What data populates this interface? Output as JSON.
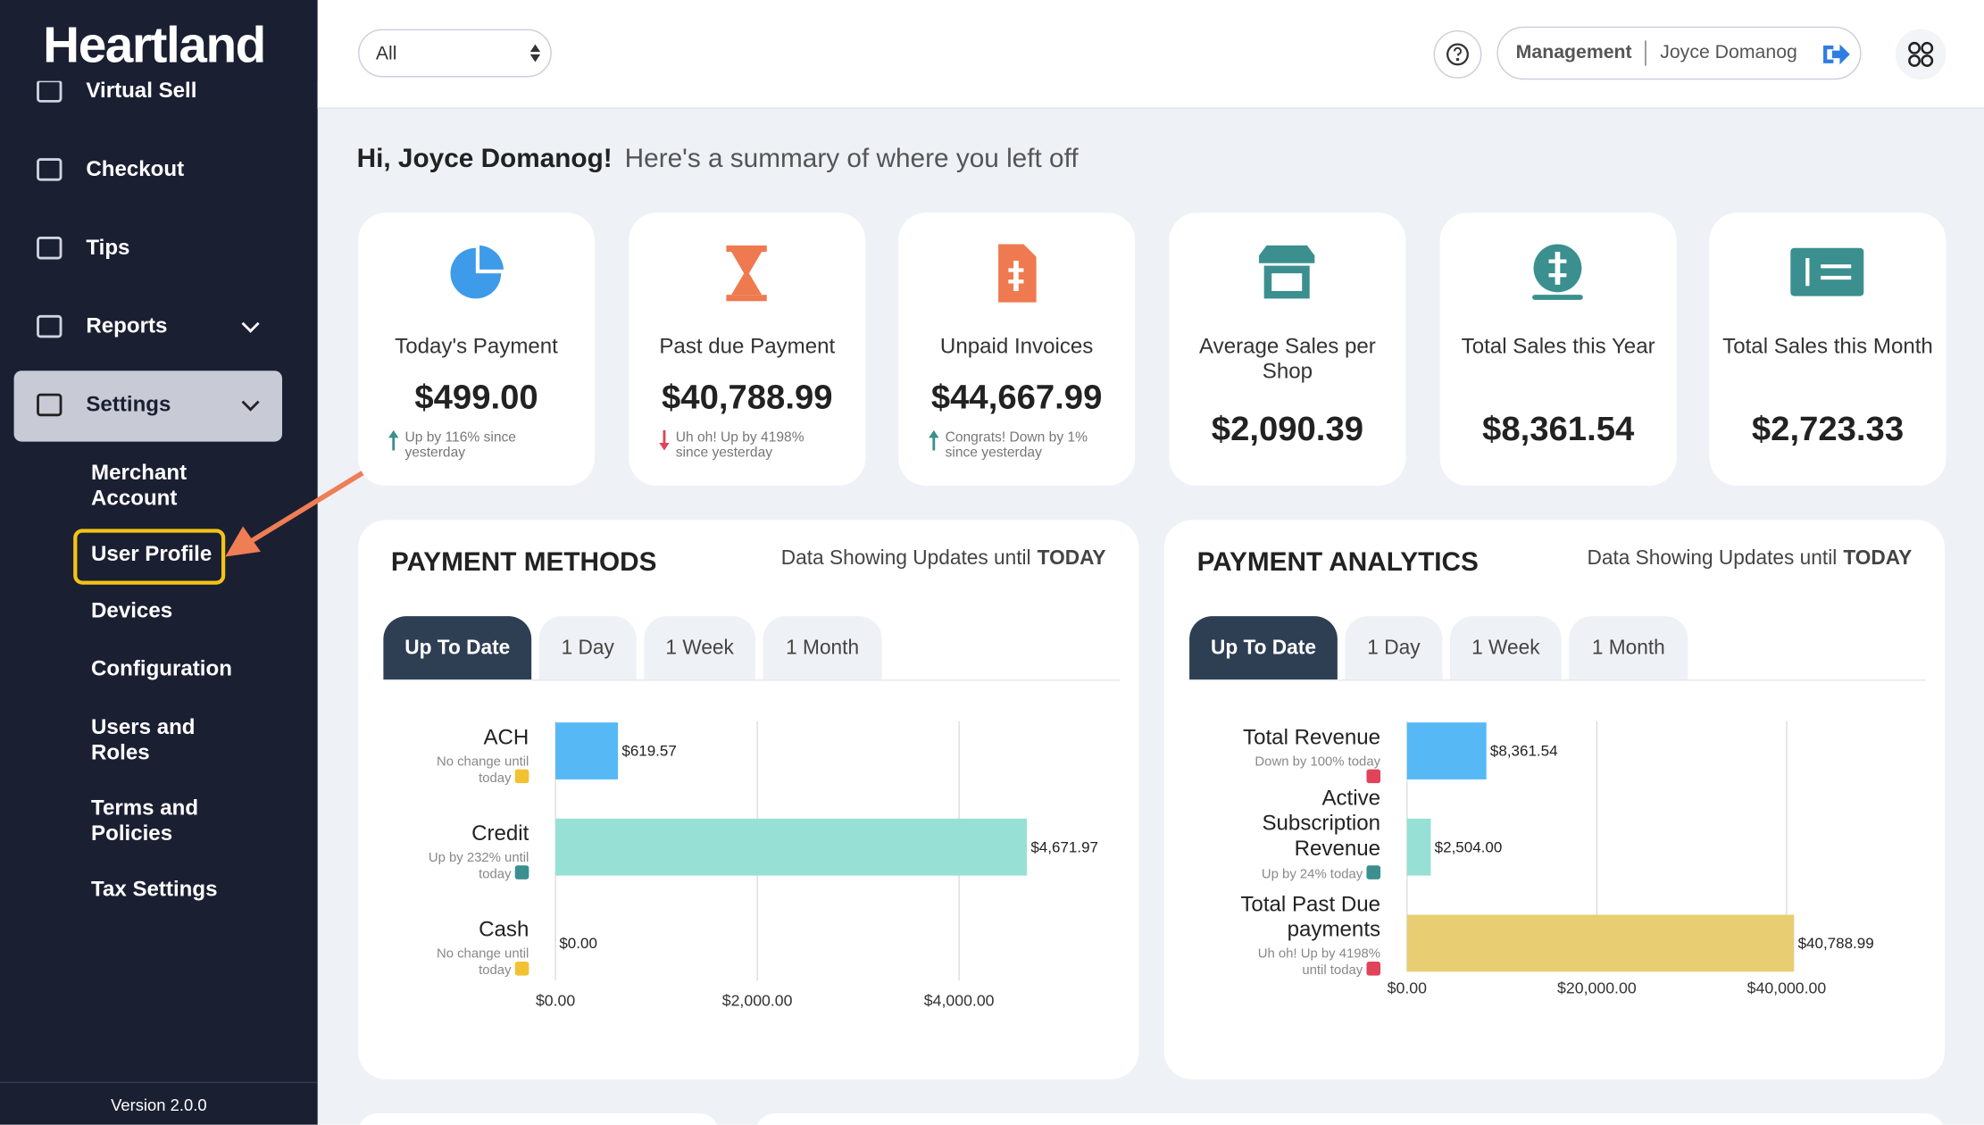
{
  "sidebar": {
    "brand": "Heartland",
    "items": [
      "Virtual Sell",
      "Checkout",
      "Tips",
      "Reports",
      "Settings"
    ],
    "sub_items": [
      "Merchant Account",
      "User Profile",
      "Devices",
      "Configuration",
      "Users and Roles",
      "Terms and Policies",
      "Tax Settings"
    ],
    "version": "Version 2.0.0"
  },
  "header": {
    "filter": "All",
    "role": "Management",
    "user": "Joyce Domanog"
  },
  "greeting": {
    "name": "Hi, Joyce Domanog!",
    "text": "Here's a summary of where you left off"
  },
  "cards": [
    {
      "label": "Today's Payment",
      "value": "$499.00",
      "note": "Up by 116% since yesterday"
    },
    {
      "label": "Past due Payment",
      "value": "$40,788.99",
      "note": "Uh oh! Up by 4198% since yesterday"
    },
    {
      "label": "Unpaid Invoices",
      "value": "$44,667.99",
      "note": "Congrats! Down by 1% since yesterday"
    },
    {
      "label": "Average Sales per Shop",
      "value": "$2,090.39"
    },
    {
      "label": "Total Sales this Year",
      "value": "$8,361.54"
    },
    {
      "label": "Total Sales this Month",
      "value": "$2,723.33"
    }
  ],
  "panels": [
    {
      "title": "PAYMENT METHODS",
      "updates": "Data Showing Updates until",
      "updates_emph": "TODAY",
      "tabs": [
        "Up To Date",
        "1 Day",
        "1 Week",
        "1 Month"
      ],
      "chart": {
        "type": "bar",
        "orientation": "horizontal",
        "categories": [
          "ACH",
          "Credit",
          "Cash"
        ],
        "notes": [
          "No change until today",
          "Up by 232% until today",
          "No change until today"
        ],
        "values": [
          619.57,
          4671.97,
          0
        ],
        "value_labels": [
          "$619.57",
          "$4,671.97",
          "$0.00"
        ],
        "colors": [
          "#56b9f6",
          "#97e0d5",
          "#56b9f6"
        ],
        "xlim": [
          0,
          5000
        ],
        "xticks": [
          {
            "value": 0,
            "label": "$0.00"
          },
          {
            "value": 2000,
            "label": "$2,000.00"
          },
          {
            "value": 4000,
            "label": "$4,000.00"
          }
        ],
        "grid": true
      }
    },
    {
      "title": "PAYMENT ANALYTICS",
      "updates": "Data Showing Updates until",
      "updates_emph": "TODAY",
      "tabs": [
        "Up To Date",
        "1 Day",
        "1 Week",
        "1 Month"
      ],
      "chart": {
        "type": "bar",
        "orientation": "horizontal",
        "categories": [
          "Total Revenue",
          "Active Subscription Revenue",
          "Total Past Due payments"
        ],
        "notes": [
          "Down by 100% today",
          "Up by 24% today",
          "Uh oh! Up by 4198% until today"
        ],
        "values": [
          8361.54,
          2504,
          40788.99
        ],
        "value_labels": [
          "$8,361.54",
          "$2,504.00",
          "$40,788.99"
        ],
        "colors": [
          "#56b9f6",
          "#97e0d5",
          "#e8cd72"
        ],
        "xlim": [
          0,
          50000
        ],
        "xticks": [
          {
            "value": 0,
            "label": "$0.00"
          },
          {
            "value": 20000,
            "label": "$20,000.00"
          },
          {
            "value": 40000,
            "label": "$40,000.00"
          }
        ],
        "grid": true
      }
    }
  ]
}
